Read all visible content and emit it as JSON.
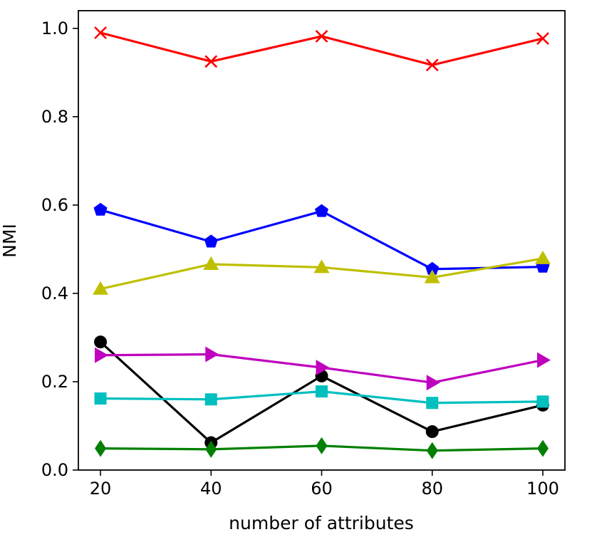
{
  "chart_data": {
    "type": "line",
    "title": "",
    "xlabel": "number of attributes",
    "ylabel": "NMI",
    "x": [
      20,
      40,
      60,
      80,
      100
    ],
    "xticks": [
      20,
      40,
      60,
      80,
      100
    ],
    "yticks": [
      0.0,
      0.2,
      0.4,
      0.6,
      0.8,
      1.0
    ],
    "xlim": [
      16,
      104
    ],
    "ylim": [
      0.0,
      1.04
    ],
    "grid": false,
    "series": [
      {
        "name": "red x",
        "color": "#ff0000",
        "marker": "x",
        "values": [
          0.99,
          0.925,
          0.982,
          0.917,
          0.977
        ]
      },
      {
        "name": "blue pentagon",
        "color": "#0000ff",
        "marker": "pentagon",
        "values": [
          0.589,
          0.517,
          0.586,
          0.455,
          0.46
        ]
      },
      {
        "name": "yellow triangle",
        "color": "#bfbf00",
        "marker": "triangle-up",
        "values": [
          0.41,
          0.466,
          0.459,
          0.436,
          0.479
        ]
      },
      {
        "name": "black circle",
        "color": "#000000",
        "marker": "circle",
        "values": [
          0.29,
          0.062,
          0.213,
          0.087,
          0.147
        ]
      },
      {
        "name": "magenta triangle",
        "color": "#bf00bf",
        "marker": "triangle-right",
        "values": [
          0.26,
          0.262,
          0.232,
          0.198,
          0.249
        ]
      },
      {
        "name": "cyan square",
        "color": "#00bfbf",
        "marker": "square",
        "values": [
          0.162,
          0.16,
          0.178,
          0.152,
          0.155
        ]
      },
      {
        "name": "green diamond",
        "color": "#008000",
        "marker": "diamond",
        "values": [
          0.049,
          0.047,
          0.055,
          0.044,
          0.049
        ]
      }
    ]
  }
}
